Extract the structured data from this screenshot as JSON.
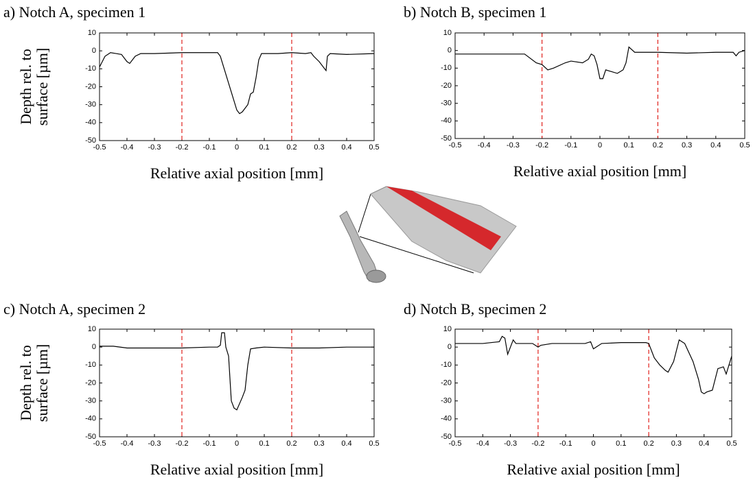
{
  "chart_data": [
    {
      "type": "line",
      "title": "a) Notch A, specimen 1",
      "xlabel": "Relative axial position [mm]",
      "ylabel": [
        "Depth rel. to",
        "surface [µm]"
      ],
      "x": [
        -0.5,
        -0.48,
        -0.46,
        -0.44,
        -0.42,
        -0.4,
        -0.39,
        -0.37,
        -0.35,
        -0.3,
        -0.2,
        -0.1,
        -0.07,
        -0.06,
        -0.04,
        -0.02,
        0,
        0.01,
        0.02,
        0.04,
        0.05,
        0.06,
        0.07,
        0.08,
        0.09,
        0.15,
        0.2,
        0.25,
        0.27,
        0.28,
        0.3,
        0.32,
        0.325,
        0.33,
        0.34,
        0.4,
        0.5
      ],
      "series": [
        {
          "color": "#000000",
          "values": [
            -9,
            -3,
            -1,
            -1.5,
            -2,
            -6,
            -7,
            -3,
            -1.5,
            -1.5,
            -1,
            -1,
            -1,
            -3,
            -13,
            -23,
            -33,
            -35,
            -34,
            -30,
            -24,
            -23,
            -15,
            -5,
            -1.5,
            -1.5,
            -1,
            -1.5,
            -1,
            -3,
            -6,
            -10,
            -11,
            -3,
            -1.5,
            -2,
            -1.5
          ]
        }
      ],
      "xlim": [
        -0.5,
        0.5
      ],
      "ylim": [
        -50,
        10
      ],
      "xticks": [
        -0.5,
        -0.4,
        -0.3,
        -0.2,
        -0.1,
        0,
        0.1,
        0.2,
        0.3,
        0.4,
        0.5
      ],
      "yticks": [
        -50,
        -40,
        -30,
        -20,
        -10,
        0,
        10
      ],
      "vlines": [
        -0.2,
        0.2
      ],
      "vline_color": "#e0201b"
    },
    {
      "type": "line",
      "title": "b) Notch B, specimen 1",
      "xlabel": "Relative axial position [mm]",
      "x": [
        -0.5,
        -0.3,
        -0.26,
        -0.22,
        -0.2,
        -0.18,
        -0.16,
        -0.12,
        -0.1,
        -0.06,
        -0.04,
        -0.03,
        -0.02,
        -0.01,
        0,
        0.01,
        0.02,
        0.04,
        0.06,
        0.08,
        0.09,
        0.1,
        0.12,
        0.2,
        0.3,
        0.4,
        0.46,
        0.47,
        0.48,
        0.5
      ],
      "series": [
        {
          "color": "#000000",
          "values": [
            -2,
            -2,
            -2,
            -7,
            -8,
            -11,
            -10,
            -7,
            -6,
            -7,
            -5,
            -2,
            -3,
            -8,
            -16,
            -16,
            -11,
            -12,
            -13,
            -11,
            -7,
            2,
            -1,
            -1,
            -1.5,
            -1,
            -1,
            -3,
            -1,
            0
          ]
        }
      ],
      "xlim": [
        -0.5,
        0.5
      ],
      "ylim": [
        -50,
        10
      ],
      "xticks": [
        -0.5,
        -0.4,
        -0.3,
        -0.2,
        -0.1,
        0,
        0.1,
        0.2,
        0.3,
        0.4,
        0.5
      ],
      "yticks": [
        -50,
        -40,
        -30,
        -20,
        -10,
        0,
        10
      ],
      "vlines": [
        -0.2,
        0.2
      ],
      "vline_color": "#e0201b"
    },
    {
      "type": "line",
      "title": "c) Notch A, specimen 2",
      "xlabel": "Relative axial position [mm]",
      "ylabel": [
        "Depth rel. to",
        "surface [µm]"
      ],
      "x": [
        -0.5,
        -0.45,
        -0.4,
        -0.3,
        -0.2,
        -0.1,
        -0.07,
        -0.06,
        -0.055,
        -0.045,
        -0.04,
        -0.03,
        -0.02,
        -0.01,
        0,
        0.02,
        0.03,
        0.04,
        0.05,
        0.07,
        0.1,
        0.2,
        0.3,
        0.4,
        0.5
      ],
      "series": [
        {
          "color": "#000000",
          "values": [
            0.5,
            0.5,
            -0.5,
            -0.5,
            -0.5,
            0,
            0,
            1,
            8,
            8,
            0,
            -5,
            -30,
            -34,
            -35,
            -28,
            -24,
            -10,
            -1,
            -0.5,
            0,
            -0.5,
            -0.5,
            0,
            0
          ]
        }
      ],
      "xlim": [
        -0.5,
        0.5
      ],
      "ylim": [
        -50,
        10
      ],
      "xticks": [
        -0.5,
        -0.4,
        -0.3,
        -0.2,
        -0.1,
        0,
        0.1,
        0.2,
        0.3,
        0.4,
        0.5
      ],
      "yticks": [
        -50,
        -40,
        -30,
        -20,
        -10,
        0,
        10
      ],
      "vlines": [
        -0.2,
        0.2
      ],
      "vline_color": "#e0201b"
    },
    {
      "type": "line",
      "title": "d) Notch B, specimen 2",
      "xlabel": "Relative axial position [mm]",
      "x": [
        -0.5,
        -0.4,
        -0.34,
        -0.33,
        -0.32,
        -0.31,
        -0.3,
        -0.29,
        -0.28,
        -0.25,
        -0.22,
        -0.2,
        -0.19,
        -0.15,
        -0.1,
        -0.03,
        -0.01,
        0,
        0.01,
        0.03,
        0.1,
        0.19,
        0.2,
        0.22,
        0.24,
        0.26,
        0.27,
        0.29,
        0.31,
        0.33,
        0.36,
        0.38,
        0.39,
        0.4,
        0.41,
        0.43,
        0.44,
        0.45,
        0.47,
        0.48,
        0.5
      ],
      "series": [
        {
          "color": "#000000",
          "values": [
            2,
            2,
            3,
            6,
            5,
            -4,
            0,
            4,
            2,
            2,
            2,
            0,
            1,
            2,
            2,
            2,
            3,
            -1,
            0,
            2,
            2.5,
            2.5,
            2,
            -6,
            -10,
            -13,
            -14,
            -8,
            4,
            2,
            -8,
            -18,
            -25,
            -26,
            -25,
            -24,
            -18,
            -12,
            -11,
            -15,
            -5
          ]
        }
      ],
      "xlim": [
        -0.5,
        0.5
      ],
      "ylim": [
        -50,
        10
      ],
      "xticks": [
        -0.5,
        -0.4,
        -0.3,
        -0.2,
        -0.1,
        0,
        0.1,
        0.2,
        0.3,
        0.4,
        0.5
      ],
      "yticks": [
        -50,
        -40,
        -30,
        -20,
        -10,
        0,
        10
      ],
      "vlines": [
        -0.2,
        0.2
      ],
      "vline_color": "#e0201b"
    }
  ]
}
